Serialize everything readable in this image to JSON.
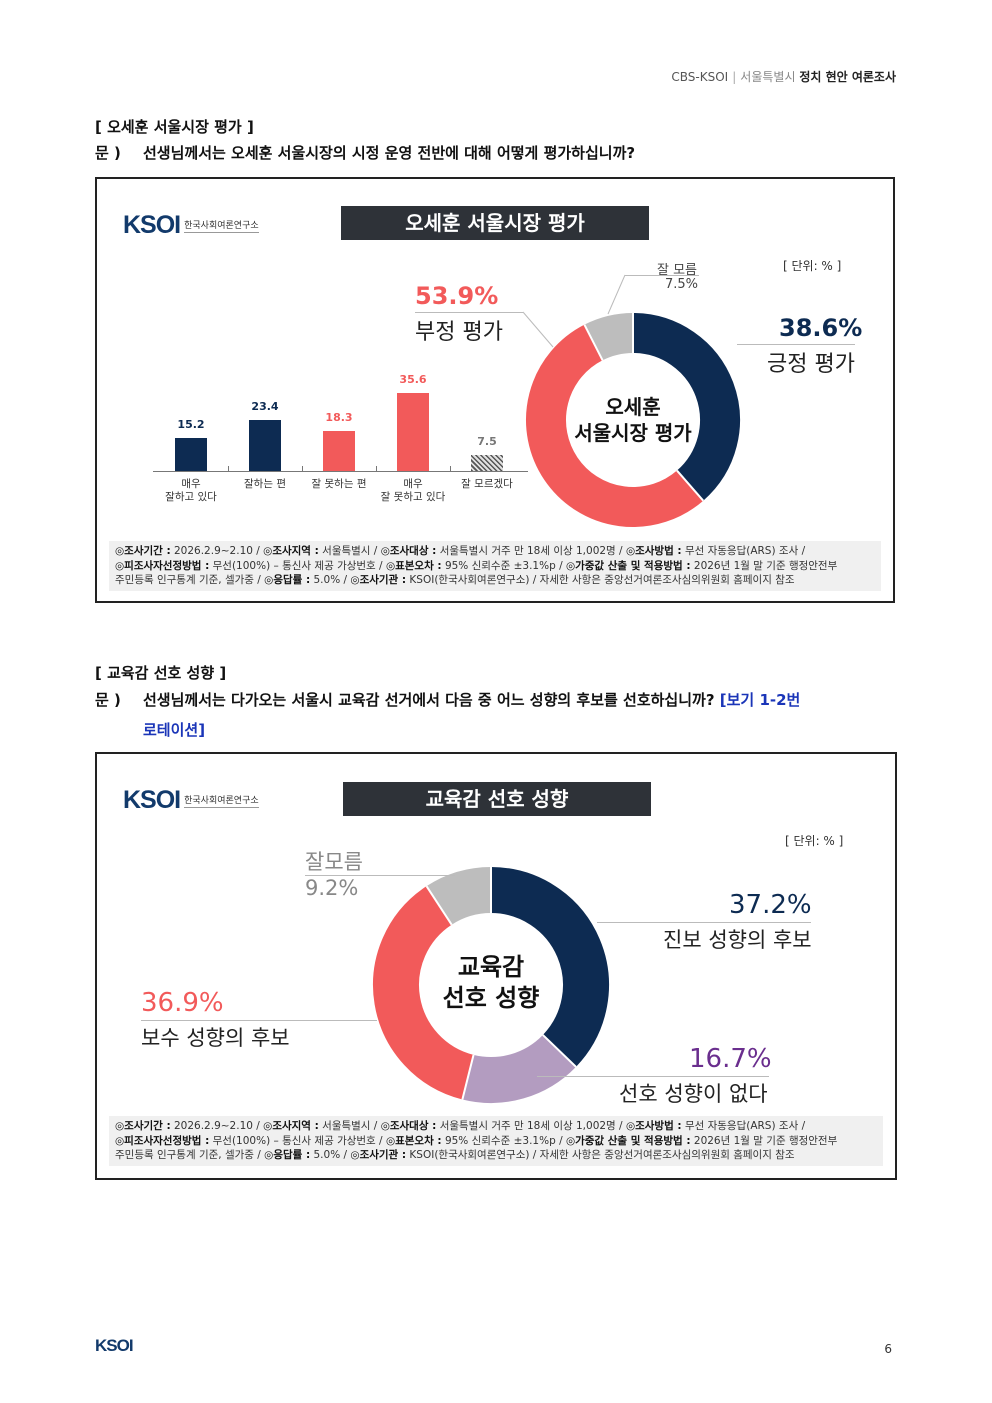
{
  "header": {
    "left": "CBS-KSOI",
    "mid": "서울특별시",
    "right": "정치 현안 여론조사"
  },
  "section1": {
    "title": "[ 오세훈 서울시장 평가 ]",
    "q_marker": "문 )",
    "question": "선생님께서는 오세훈 서울시장의 시정 운영 전반에 대해 어떻게 평가하십니까?"
  },
  "section2": {
    "title": "[ 교육감 선호 성향 ]",
    "q_marker": "문 )",
    "question": "선생님께서는 다가오는 서울시 교육감 선거에서 다음 중 어느 성향의 후보를 선호하십니까?",
    "note_a": "[보기 1-2번",
    "note_b": "로테이션]"
  },
  "logo": {
    "word": "KSOI",
    "org": "한국사회여론연구소"
  },
  "footer_logo": "KSOI",
  "page_number": "6",
  "colors": {
    "navy": "#0d2b52",
    "red": "#f25a5a",
    "gray": "#bdbdbd",
    "purple": "#b39cc0",
    "purple_text": "#6a2e8e"
  },
  "footer_text": {
    "l1_a_k": "◎조사기간 :",
    "l1_a_v": "2026.2.9~2.10 /",
    "l1_b_k": "◎조사지역 :",
    "l1_b_v": "서울특별시 /",
    "l1_c_k": "◎조사대상 :",
    "l1_c_v": "서울특별시 거주 만 18세 이상 1,002명 /",
    "l1_d_k": "◎조사방법 :",
    "l1_d_v": "무선 자동응답(ARS) 조사 /",
    "l2_a_k": "◎피조사자선정방법 :",
    "l2_a_v": "무선(100%) – 통신사 제공 가상번호 /",
    "l2_b_k": "◎표본오차 :",
    "l2_b_v": "95% 신뢰수준 ±3.1%p /",
    "l2_c_k": "◎가중값 산출 및 적용방법 :",
    "l2_c_v": "2026년 1월 말 기준 행정안전부",
    "l3_a_v": "주민등록 인구통계 기준, 셀가중 /",
    "l3_b_k": "◎응답률 :",
    "l3_b_v": "5.0% /",
    "l3_c_k": "◎조사기관 :",
    "l3_c_v": "KSOI(한국사회여론연구소) /",
    "l3_d_v": "자세한 사항은 중앙선거여론조사심의위원회 홈페이지 참조"
  },
  "chart_data": [
    {
      "type": "pie",
      "title": "오세훈 서울시장 평가",
      "unit": "[ 단위: % ]",
      "center_label_1": "오세훈",
      "center_label_2": "서울시장 평가",
      "slices": [
        {
          "label": "긍정 평가",
          "value": 38.6,
          "display": "38.6%"
        },
        {
          "label": "부정 평가",
          "value": 53.9,
          "display": "53.9%"
        },
        {
          "label": "잘 모름",
          "value": 7.5,
          "display": "7.5%"
        }
      ]
    },
    {
      "type": "bar",
      "categories": [
        "매우\n잘하고 있다",
        "잘하는 편",
        "잘 못하는 편",
        "매우\n잘 못하고 있다",
        "잘 모르겠다"
      ],
      "values": [
        15.2,
        23.4,
        18.3,
        35.6,
        7.5
      ],
      "value_labels": [
        "15.2",
        "23.4",
        "18.3",
        "35.6",
        "7.5"
      ]
    },
    {
      "type": "pie",
      "title": "교육감 선호 성향",
      "unit": "[ 단위: % ]",
      "center_label_1": "교육감",
      "center_label_2": "선호 성향",
      "slices": [
        {
          "label": "진보 성향의 후보",
          "value": 37.2,
          "display": "37.2%"
        },
        {
          "label": "선호 성향이 없다",
          "value": 16.7,
          "display": "16.7%"
        },
        {
          "label": "보수 성향의 후보",
          "value": 36.9,
          "display": "36.9%"
        },
        {
          "label": "잘모름",
          "value": 9.2,
          "display": "9.2%"
        }
      ]
    }
  ]
}
